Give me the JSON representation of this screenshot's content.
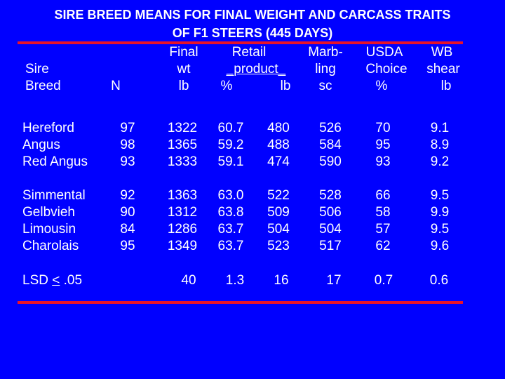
{
  "title": {
    "line1": "SIRE BREED MEANS FOR FINAL WEIGHT AND CARCASS TRAITS",
    "line2": "OF F1 STEERS (445 DAYS)"
  },
  "headers": {
    "sire_breed_1": "Sire",
    "sire_breed_2": "Breed",
    "n": "N",
    "final_wt_1": "Final",
    "final_wt_2": "wt",
    "final_wt_3": "lb",
    "retail_1": "Retail",
    "retail_2": "_product_",
    "retail_pct": "%",
    "retail_lb": "lb",
    "marbling_1": "Marb-",
    "marbling_2": "ling",
    "marbling_3": "sc",
    "usda_1": "USDA",
    "usda_2": "Choice",
    "usda_3": "%",
    "wb_1": "WB",
    "wb_2": "shear",
    "wb_3": "lb"
  },
  "groups": [
    {
      "rows": [
        {
          "breed": "Hereford",
          "n": "97",
          "final_wt": "1322",
          "retail_pct": "60.7",
          "retail_lb": "480",
          "marbling": "526",
          "choice": "70",
          "wb_shear": "9.1"
        },
        {
          "breed": "Angus",
          "n": "98",
          "final_wt": "1365",
          "retail_pct": "59.2",
          "retail_lb": "488",
          "marbling": "584",
          "choice": "95",
          "wb_shear": "8.9"
        },
        {
          "breed": "Red Angus",
          "n": "93",
          "final_wt": "1333",
          "retail_pct": "59.1",
          "retail_lb": "474",
          "marbling": "590",
          "choice": "93",
          "wb_shear": "9.2"
        }
      ]
    },
    {
      "rows": [
        {
          "breed": "Simmental",
          "n": "92",
          "final_wt": "1363",
          "retail_pct": "63.0",
          "retail_lb": "522",
          "marbling": "528",
          "choice": "66",
          "wb_shear": "9.5"
        },
        {
          "breed": "Gelbvieh",
          "n": "90",
          "final_wt": "1312",
          "retail_pct": "63.8",
          "retail_lb": "509",
          "marbling": "506",
          "choice": "58",
          "wb_shear": "9.9"
        },
        {
          "breed": "Limousin",
          "n": "84",
          "final_wt": "1286",
          "retail_pct": "63.7",
          "retail_lb": "504",
          "marbling": "504",
          "choice": "57",
          "wb_shear": "9.5"
        },
        {
          "breed": "Charolais",
          "n": "95",
          "final_wt": "1349",
          "retail_pct": "63.7",
          "retail_lb": "523",
          "marbling": "517",
          "choice": "62",
          "wb_shear": "9.6"
        }
      ]
    }
  ],
  "lsd": {
    "label_prefix": "LSD ",
    "label_lt": "<",
    "label_suffix": " .05",
    "final_wt": "40",
    "retail_pct": "1.3",
    "retail_lb": "16",
    "marbling": "17",
    "choice": "0.7",
    "wb_shear": "0.6"
  },
  "colors": {
    "background": "#0000FF",
    "text": "#FFFFFF",
    "rule": "#E8132A"
  }
}
